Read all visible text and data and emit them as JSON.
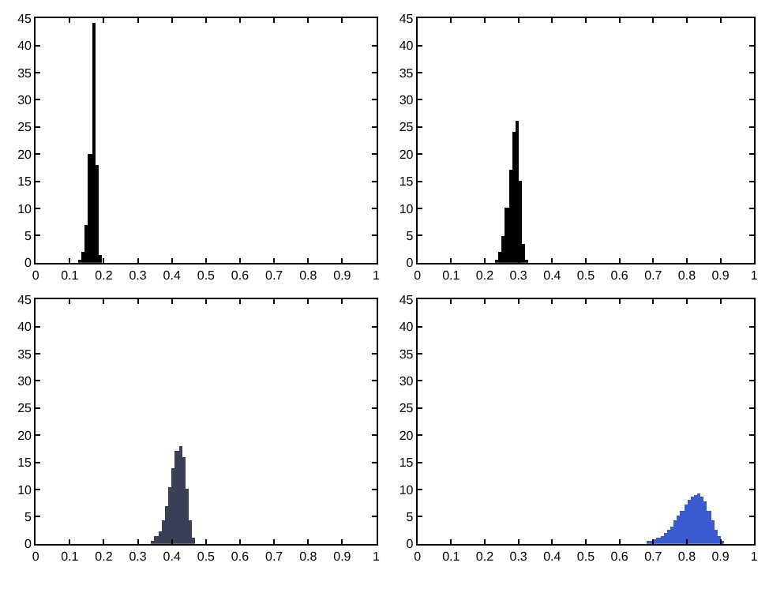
{
  "chart_data": [
    {
      "type": "histogram",
      "color": "#000000",
      "xlim": [
        0,
        1
      ],
      "ylim": [
        0,
        45
      ],
      "xticks": [
        0,
        0.1,
        0.2,
        0.3,
        0.4,
        0.5,
        0.6,
        0.7,
        0.8,
        0.9,
        1
      ],
      "yticks": [
        0,
        5,
        10,
        15,
        20,
        25,
        30,
        35,
        40,
        45
      ],
      "bins": [
        0.125,
        0.135,
        0.145,
        0.155,
        0.165,
        0.175,
        0.185,
        0.195
      ],
      "values": [
        0.5,
        2,
        7,
        20,
        44,
        18,
        1.5
      ]
    },
    {
      "type": "histogram",
      "color": "#000000",
      "xlim": [
        0,
        1
      ],
      "ylim": [
        0,
        45
      ],
      "xticks": [
        0,
        0.1,
        0.2,
        0.3,
        0.4,
        0.5,
        0.6,
        0.7,
        0.8,
        0.9,
        1
      ],
      "yticks": [
        0,
        5,
        10,
        15,
        20,
        25,
        30,
        35,
        40,
        45
      ],
      "bins": [
        0.23,
        0.24,
        0.25,
        0.26,
        0.27,
        0.28,
        0.29,
        0.3,
        0.31,
        0.32,
        0.33
      ],
      "values": [
        0.6,
        2,
        5,
        10,
        17,
        24,
        26,
        15,
        3.5,
        0.5
      ]
    },
    {
      "type": "histogram",
      "color": "#3b3f58",
      "xlim": [
        0,
        1
      ],
      "ylim": [
        0,
        45
      ],
      "xticks": [
        0,
        0.1,
        0.2,
        0.3,
        0.4,
        0.5,
        0.6,
        0.7,
        0.8,
        0.9,
        1
      ],
      "yticks": [
        0,
        5,
        10,
        15,
        20,
        25,
        30,
        35,
        40,
        45
      ],
      "bins": [
        0.34,
        0.35,
        0.36,
        0.37,
        0.38,
        0.39,
        0.4,
        0.41,
        0.42,
        0.43,
        0.44,
        0.45,
        0.46,
        0.47
      ],
      "values": [
        0.5,
        1.3,
        2.4,
        4.4,
        7,
        10.4,
        14,
        17,
        18,
        16,
        10,
        4.2,
        1
      ]
    },
    {
      "type": "histogram",
      "color": "#3a5bd0",
      "xlim": [
        0,
        1
      ],
      "ylim": [
        0,
        45
      ],
      "xticks": [
        0,
        0.1,
        0.2,
        0.3,
        0.4,
        0.5,
        0.6,
        0.7,
        0.8,
        0.9,
        1
      ],
      "yticks": [
        0,
        5,
        10,
        15,
        20,
        25,
        30,
        35,
        40,
        45
      ],
      "bins": [
        0.68,
        0.69,
        0.7,
        0.71,
        0.72,
        0.73,
        0.74,
        0.75,
        0.76,
        0.77,
        0.78,
        0.79,
        0.8,
        0.81,
        0.82,
        0.83,
        0.84,
        0.85,
        0.86,
        0.87,
        0.88,
        0.89,
        0.9,
        0.91
      ],
      "values": [
        0.3,
        0.5,
        0.7,
        1,
        1.4,
        1.9,
        2.5,
        3.3,
        4.2,
        5.1,
        6.1,
        7.1,
        8,
        8.7,
        9.1,
        9.2,
        8.8,
        7.8,
        6.2,
        4.3,
        2.6,
        1.3,
        0.5
      ]
    }
  ]
}
